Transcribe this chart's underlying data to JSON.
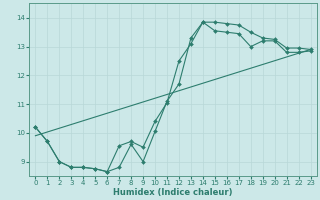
{
  "title": "",
  "xlabel": "Humidex (Indice chaleur)",
  "bg_color": "#cce8e8",
  "line_color": "#2d7d6e",
  "spine_color": "#5a9a8a",
  "grid_color": "#b8d8d8",
  "xlim": [
    -0.5,
    23.5
  ],
  "ylim": [
    8.5,
    14.5
  ],
  "xticks": [
    0,
    1,
    2,
    3,
    4,
    5,
    6,
    7,
    8,
    9,
    10,
    11,
    12,
    13,
    14,
    15,
    16,
    17,
    18,
    19,
    20,
    21,
    22,
    23
  ],
  "yticks": [
    9,
    10,
    11,
    12,
    13,
    14
  ],
  "line1_x": [
    0,
    1,
    2,
    3,
    4,
    5,
    6,
    7,
    8,
    9,
    10,
    11,
    12,
    13,
    14,
    15,
    16,
    17,
    18,
    19,
    20,
    21,
    22,
    23
  ],
  "line1_y": [
    10.2,
    9.7,
    9.0,
    8.8,
    8.8,
    8.75,
    8.65,
    8.8,
    9.6,
    9.0,
    10.05,
    11.1,
    11.7,
    13.3,
    13.85,
    13.85,
    13.8,
    13.75,
    13.5,
    13.3,
    13.25,
    12.95,
    12.95,
    12.9
  ],
  "line2_x": [
    0,
    1,
    2,
    3,
    4,
    5,
    6,
    7,
    8,
    9,
    10,
    11,
    12,
    13,
    14,
    15,
    16,
    17,
    18,
    19,
    20,
    21,
    22,
    23
  ],
  "line2_y": [
    10.2,
    9.7,
    9.0,
    8.8,
    8.8,
    8.75,
    8.65,
    9.55,
    9.7,
    9.5,
    10.4,
    11.05,
    12.5,
    13.1,
    13.85,
    13.55,
    13.5,
    13.45,
    13.0,
    13.2,
    13.2,
    12.8,
    12.8,
    12.85
  ],
  "line3_x": [
    0,
    23
  ],
  "line3_y": [
    9.9,
    12.9
  ],
  "xlabel_fontsize": 6.0,
  "tick_fontsize": 5.0
}
